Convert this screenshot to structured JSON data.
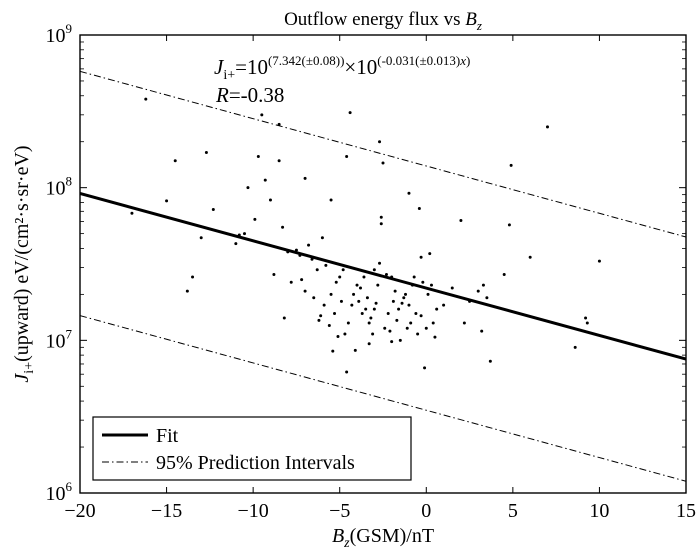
{
  "chart_data": {
    "type": "scatter",
    "title_prefix": "Outflow energy flux vs ",
    "title_var": "B",
    "title_sub": "z",
    "xlabel_var": "B",
    "xlabel_sub": "z",
    "xlabel_rest": "(GSM)/nT",
    "ylabel_var": "J",
    "ylabel_sub": "i+",
    "ylabel_rest": "(upward) eV/(cm²·s·sr·eV)",
    "xlim": [
      -20,
      15
    ],
    "ylim": [
      1000000,
      1000000000
    ],
    "yscale": "log",
    "x_ticks": [
      -20,
      -15,
      -10,
      -5,
      0,
      5,
      10,
      15
    ],
    "x_tick_labels": [
      "−20",
      "−15",
      "−10",
      "−5",
      "0",
      "5",
      "10",
      "15"
    ],
    "y_tick_exponents": [
      6,
      7,
      8,
      9
    ],
    "y_tick_base": "10",
    "equation": {
      "lhs_var": "J",
      "lhs_sub": "i+",
      "eq_base1": "=10",
      "eq_exp1": "(7.342(±0.08))",
      "eq_mid": "×10",
      "eq_exp2": "(-0.031(±0.013)",
      "eq_exp2_var": "x",
      "eq_exp2_close": ")"
    },
    "r_label_var": "R",
    "r_label_value": "=-0.38",
    "fit": {
      "intercept": 7.342,
      "slope": -0.031
    },
    "prediction_band_offset_dex": 0.8,
    "legend": {
      "position": "bottom-left",
      "entries": [
        {
          "label": "Fit",
          "style": "solid"
        },
        {
          "label": "95% Prediction Intervals",
          "style": "dashdot"
        }
      ]
    },
    "points": [
      [
        -17,
        68000000.0
      ],
      [
        -16.2,
        380000000.0
      ],
      [
        -15,
        82000000.0
      ],
      [
        -14.5,
        150000000.0
      ],
      [
        -13.8,
        21000000.0
      ],
      [
        -13.5,
        26000000.0
      ],
      [
        -13,
        47000000.0
      ],
      [
        -12.7,
        170000000.0
      ],
      [
        -12.3,
        72000000.0
      ],
      [
        -10.8,
        49000000.0
      ],
      [
        -10.3,
        100000000.0
      ],
      [
        -9.9,
        62000000.0
      ],
      [
        -9.7,
        160000000.0
      ],
      [
        -9.5,
        300000000.0
      ],
      [
        -9.3,
        112000000.0
      ],
      [
        -9.0,
        83000000.0
      ],
      [
        -8.5,
        150000000.0
      ],
      [
        -8.5,
        260000000.0
      ],
      [
        -8.3,
        55000000.0
      ],
      [
        -8.2,
        14000000.0
      ],
      [
        -8.0,
        38000000.0
      ],
      [
        -7.8,
        24000000.0
      ],
      [
        -7.5,
        39000000.0
      ],
      [
        -7.3,
        36000000.0
      ],
      [
        -7.0,
        115000000.0
      ],
      [
        -7.0,
        21000000.0
      ],
      [
        -6.5,
        19000000.0
      ],
      [
        -6.3,
        29000000.0
      ],
      [
        -6.1,
        14500000.0
      ],
      [
        -6.0,
        47000000.0
      ],
      [
        -5.8,
        31000000.0
      ],
      [
        -5.5,
        83000000.0
      ],
      [
        -5.5,
        20000000.0
      ],
      [
        -5.3,
        15000000.0
      ],
      [
        -5.1,
        10600000.0
      ],
      [
        -5.0,
        26000000.0
      ],
      [
        -4.8,
        29000000.0
      ],
      [
        -4.6,
        160000000.0
      ],
      [
        -4.5,
        13000000.0
      ],
      [
        -4.4,
        310000000.0
      ],
      [
        -4.2,
        20000000.0
      ],
      [
        -4.0,
        23000000.0
      ],
      [
        -3.9,
        18000000.0
      ],
      [
        -3.7,
        15000000.0
      ],
      [
        -3.6,
        26000000.0
      ],
      [
        -3.5,
        16000000.0
      ],
      [
        -3.3,
        13000000.0
      ],
      [
        -3.1,
        11000000.0
      ],
      [
        -3.0,
        29000000.0
      ],
      [
        -2.9,
        17500000.0
      ],
      [
        -2.7,
        200000000.0
      ],
      [
        -2.6,
        64000000.0
      ],
      [
        -2.6,
        58000000.0
      ],
      [
        -2.5,
        145000000.0
      ],
      [
        -2.4,
        12000000.0
      ],
      [
        -2.2,
        15000000.0
      ],
      [
        -2.0,
        26000000.0
      ],
      [
        -1.9,
        18000000.0
      ],
      [
        -1.7,
        13500000.0
      ],
      [
        -1.5,
        10000000.0
      ],
      [
        -1.3,
        19000000.0
      ],
      [
        -1.1,
        12000000.0
      ],
      [
        -1.0,
        92000000.0
      ],
      [
        -0.8,
        23000000.0
      ],
      [
        -0.6,
        15000000.0
      ],
      [
        -0.4,
        73000000.0
      ],
      [
        -0.3,
        35000000.0
      ],
      [
        -0.2,
        24000000.0
      ],
      [
        -0.1,
        6600000.0
      ],
      [
        0.0,
        12000000.0
      ],
      [
        0.2,
        37000000.0
      ],
      [
        0.3,
        23000000.0
      ],
      [
        0.5,
        10500000.0
      ],
      [
        0.6,
        16000000.0
      ],
      [
        2.0,
        61000000.0
      ],
      [
        2.2,
        13000000.0
      ],
      [
        3.2,
        11500000.0
      ],
      [
        3.3,
        23000000.0
      ],
      [
        3.5,
        19000000.0
      ],
      [
        3.7,
        7300000.0
      ],
      [
        4.5,
        27000000.0
      ],
      [
        4.8,
        57000000.0
      ],
      [
        4.9,
        140000000.0
      ],
      [
        6.0,
        35000000.0
      ],
      [
        7.0,
        250000000.0
      ],
      [
        8.6,
        9000000.0
      ],
      [
        9.2,
        14000000.0
      ],
      [
        9.3,
        13000000.0
      ],
      [
        10.0,
        33000000.0
      ],
      [
        -10.5,
        50000000.0
      ],
      [
        -11.0,
        43000000.0
      ],
      [
        -6.8,
        42000000.0
      ],
      [
        -6.6,
        34000000.0
      ],
      [
        -5.9,
        17000000.0
      ],
      [
        -5.6,
        12500000.0
      ],
      [
        -4.9,
        18000000.0
      ],
      [
        -4.3,
        17000000.0
      ],
      [
        -3.8,
        22000000.0
      ],
      [
        -3.4,
        19000000.0
      ],
      [
        -3.2,
        14000000.0
      ],
      [
        -2.8,
        23000000.0
      ],
      [
        -2.3,
        27000000.0
      ],
      [
        -2.1,
        11500000.0
      ],
      [
        -1.8,
        21000000.0
      ],
      [
        -1.6,
        16000000.0
      ],
      [
        -1.4,
        17500000.0
      ],
      [
        -1.2,
        20000000.0
      ],
      [
        -0.9,
        13000000.0
      ],
      [
        -0.7,
        26000000.0
      ],
      [
        -0.5,
        11000000.0
      ],
      [
        0.1,
        20000000.0
      ],
      [
        0.4,
        13000000.0
      ],
      [
        1.0,
        17000000.0
      ],
      [
        1.5,
        22000000.0
      ],
      [
        -5.2,
        24000000.0
      ],
      [
        -4.7,
        11000000.0
      ],
      [
        -3.0,
        16000000.0
      ],
      [
        -2.0,
        9800000.0
      ],
      [
        -1.0,
        17000000.0
      ],
      [
        -0.3,
        14500000.0
      ],
      [
        -4.1,
        8600000.0
      ],
      [
        -3.3,
        9500000.0
      ],
      [
        -2.7,
        32000000.0
      ],
      [
        -5.4,
        8500000.0
      ],
      [
        -4.6,
        6200000.0
      ],
      [
        -7.2,
        25000000.0
      ],
      [
        -6.2,
        13500000.0
      ],
      [
        -8.8,
        27000000.0
      ],
      [
        2.5,
        18000000.0
      ],
      [
        3.0,
        21000000.0
      ]
    ]
  }
}
